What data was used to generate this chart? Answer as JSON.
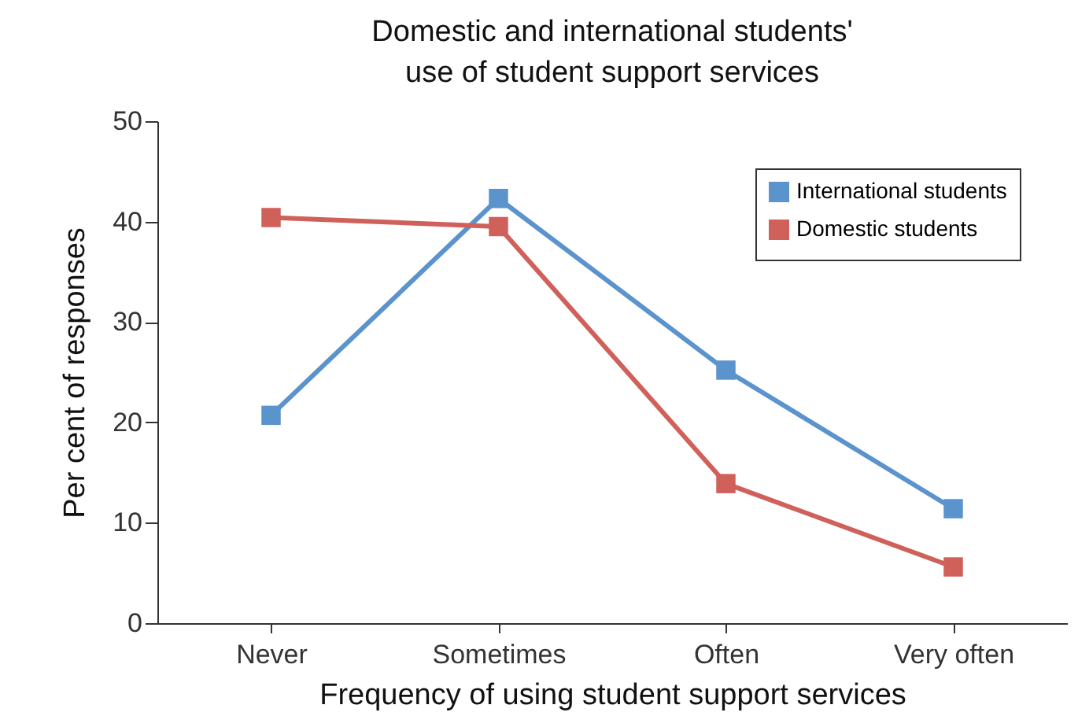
{
  "chart_data": {
    "type": "line",
    "title": "Domestic and international students' use of student support services",
    "xlabel": "Frequency of using student support services",
    "ylabel": "Per cent of responses",
    "categories": [
      "Never",
      "Sometimes",
      "Often",
      "Very often"
    ],
    "series": [
      {
        "name": "International students",
        "color": "#5b93cc",
        "values": [
          20.7,
          42.3,
          25.2,
          11.4
        ]
      },
      {
        "name": "Domestic students",
        "color": "#d0605a",
        "values": [
          40.4,
          39.5,
          13.9,
          5.6
        ]
      }
    ],
    "ylim": [
      0,
      50
    ],
    "yticks": [
      0,
      10,
      20,
      30,
      40,
      50
    ],
    "grid": false,
    "legend": "top right",
    "marker": "square",
    "line_style": "solid"
  }
}
